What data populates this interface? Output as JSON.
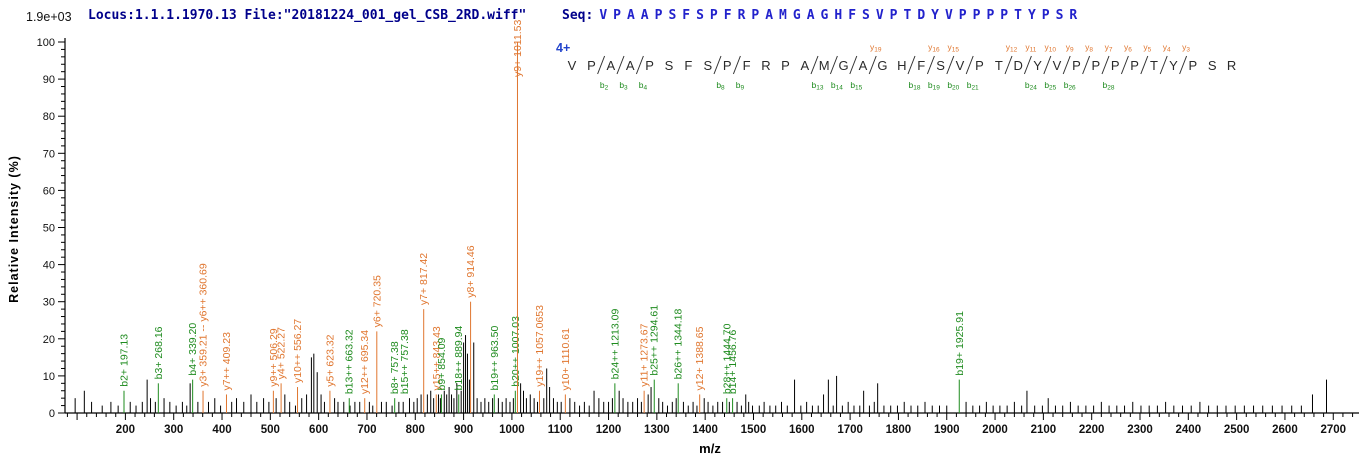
{
  "header": {
    "locus": "Locus:1.1.1.1970.13 File:\"20181224_001_gel_CSB_2RD.wiff\"",
    "seq_label": "Seq:",
    "sequence": "VPAAPSFSPFRPAMGAGHFSVPTDYVPPPPTYPSR"
  },
  "scale_note": "1.9e+03",
  "sequence_map": {
    "charge": "4+",
    "residues": "VPAAPSFSPFRPAMGAGHFSVPTDYVPPPPTYPSR",
    "cuts": [
      {
        "after": 2,
        "b": "b2"
      },
      {
        "after": 3,
        "b": "b3"
      },
      {
        "after": 4,
        "b": "b4"
      },
      {
        "after": 8,
        "b": "b8"
      },
      {
        "after": 9,
        "b": "b9"
      },
      {
        "after": 13,
        "b": "b13"
      },
      {
        "after": 14,
        "b": "b14"
      },
      {
        "after": 15,
        "b": "b15"
      },
      {
        "after": 16,
        "y": "y19"
      },
      {
        "after": 18,
        "b": "b18"
      },
      {
        "after": 19,
        "b": "b19",
        "y": "y16"
      },
      {
        "after": 20,
        "b": "b20",
        "y": "y15"
      },
      {
        "after": 21,
        "b": "b21"
      },
      {
        "after": 23,
        "y": "y12"
      },
      {
        "after": 24,
        "b": "b24",
        "y": "y11"
      },
      {
        "after": 25,
        "b": "b25",
        "y": "y10"
      },
      {
        "after": 26,
        "b": "b26",
        "y": "y9"
      },
      {
        "after": 27,
        "y": "y8"
      },
      {
        "after": 28,
        "b": "b28",
        "y": "y7"
      },
      {
        "after": 29,
        "y": "y6"
      },
      {
        "after": 30,
        "y": "y5"
      },
      {
        "after": 31,
        "y": "y4"
      },
      {
        "after": 32,
        "y": "y3"
      }
    ]
  },
  "chart_data": {
    "type": "bar",
    "title": "",
    "xlabel": "m/z",
    "ylabel": "Relative  Intensity (%)",
    "xlim": [
      75,
      2745
    ],
    "ylim": [
      0,
      100
    ],
    "x_tick_label_start": 200,
    "x_tick_label_end": 2700,
    "x_tick_step": 100,
    "x_minor_step": 20,
    "y_tick_step": 10,
    "y_minor_step": 2,
    "grid": false,
    "colors": {
      "b_ion": "#1e8b1e",
      "y_ion": "#e0762f",
      "peak": "#000000"
    },
    "labeled_peaks": [
      {
        "mz": 197.13,
        "intensity": 6,
        "label": "b2+ 197.13",
        "ion": "b"
      },
      {
        "mz": 268.16,
        "intensity": 8,
        "label": "b3+ 268.16",
        "ion": "b"
      },
      {
        "mz": 339.2,
        "intensity": 9,
        "label": "b4+ 339.20",
        "ion": "b"
      },
      {
        "mz": 360.69,
        "intensity": 6,
        "label": "y3+ 359.21 -- y6++ 360.69",
        "ion": "y"
      },
      {
        "mz": 409.23,
        "intensity": 5,
        "label": "y7++ 409.23",
        "ion": "y"
      },
      {
        "mz": 506.29,
        "intensity": 6,
        "label": "y9++ 506.29",
        "ion": "y"
      },
      {
        "mz": 522.27,
        "intensity": 8,
        "label": "y4+ 522.27",
        "ion": "y"
      },
      {
        "mz": 556.27,
        "intensity": 7,
        "label": "y10++ 556.27",
        "ion": "y"
      },
      {
        "mz": 623.32,
        "intensity": 6,
        "label": "y5+ 623.32",
        "ion": "y"
      },
      {
        "mz": 663.32,
        "intensity": 4,
        "label": "b13++ 663.32",
        "ion": "b"
      },
      {
        "mz": 695.34,
        "intensity": 4,
        "label": "y12++ 695.34",
        "ion": "y"
      },
      {
        "mz": 720.35,
        "intensity": 22,
        "label": "y6+ 720.35",
        "ion": "y"
      },
      {
        "mz": 757.38,
        "intensity": 4,
        "label": "b8+ 757.38",
        "ion": "b"
      },
      {
        "mz": 757.38,
        "intensity": 4,
        "label": "b15++ 757.38",
        "ion": "b",
        "label_dx": 10,
        "no_line": true
      },
      {
        "mz": 817.42,
        "intensity": 28,
        "label": "y7+ 817.42",
        "ion": "y"
      },
      {
        "mz": 843.43,
        "intensity": 5,
        "label": "y15++ 843.43",
        "ion": "y"
      },
      {
        "mz": 854.09,
        "intensity": 5,
        "label": "b9+ 854.09",
        "ion": "b"
      },
      {
        "mz": 889.94,
        "intensity": 5,
        "label": "b18++ 889.94",
        "ion": "b"
      },
      {
        "mz": 914.46,
        "intensity": 30,
        "label": "y8+ 914.46",
        "ion": "y"
      },
      {
        "mz": 963.5,
        "intensity": 5,
        "label": "b19++ 963.50",
        "ion": "b"
      },
      {
        "mz": 1007.03,
        "intensity": 6,
        "label": "b20++ 1007.03",
        "ion": "b"
      },
      {
        "mz": 1011.53,
        "intensity": 100,
        "label": "y9+ 1011.53",
        "ion": "y",
        "label_bottom_y": 77
      },
      {
        "mz": 1057.07,
        "intensity": 6,
        "label": "y19++ 1057.0653",
        "ion": "y"
      },
      {
        "mz": 1110.61,
        "intensity": 5,
        "label": "y10+ 1110.61",
        "ion": "y"
      },
      {
        "mz": 1213.09,
        "intensity": 8,
        "label": "b24++ 1213.09",
        "ion": "b"
      },
      {
        "mz": 1273.67,
        "intensity": 6,
        "label": "y11+ 1273.67",
        "ion": "y"
      },
      {
        "mz": 1294.61,
        "intensity": 9,
        "label": "b25++ 1294.61",
        "ion": "b"
      },
      {
        "mz": 1344.18,
        "intensity": 8,
        "label": "b26++ 1344.18",
        "ion": "b"
      },
      {
        "mz": 1388.65,
        "intensity": 5,
        "label": "y12+ 1388.65",
        "ion": "y"
      },
      {
        "mz": 1444.7,
        "intensity": 4,
        "label": "b28++ 1444.70",
        "ion": "b"
      },
      {
        "mz": 1456.76,
        "intensity": 4,
        "label": "b14+ 1456.76",
        "ion": "b"
      },
      {
        "mz": 1925.91,
        "intensity": 9,
        "label": "b19+ 1925.91",
        "ion": "b"
      }
    ],
    "noise_peaks": [
      [
        96,
        4
      ],
      [
        115,
        6
      ],
      [
        130,
        3
      ],
      [
        152,
        2
      ],
      [
        170,
        3
      ],
      [
        185,
        2
      ],
      [
        210,
        3
      ],
      [
        222,
        2
      ],
      [
        235,
        3
      ],
      [
        245,
        9
      ],
      [
        252,
        4
      ],
      [
        262,
        3
      ],
      [
        280,
        4
      ],
      [
        292,
        3
      ],
      [
        305,
        2
      ],
      [
        318,
        3
      ],
      [
        327,
        2
      ],
      [
        334,
        8
      ],
      [
        350,
        3
      ],
      [
        372,
        3
      ],
      [
        385,
        4
      ],
      [
        397,
        2
      ],
      [
        420,
        3
      ],
      [
        430,
        4
      ],
      [
        445,
        3
      ],
      [
        460,
        5
      ],
      [
        472,
        3
      ],
      [
        486,
        4
      ],
      [
        497,
        3
      ],
      [
        512,
        4
      ],
      [
        530,
        5
      ],
      [
        540,
        3
      ],
      [
        552,
        2
      ],
      [
        565,
        4
      ],
      [
        575,
        5
      ],
      [
        585,
        15
      ],
      [
        590,
        16
      ],
      [
        597,
        11
      ],
      [
        605,
        5
      ],
      [
        612,
        3
      ],
      [
        633,
        4
      ],
      [
        640,
        3
      ],
      [
        652,
        3
      ],
      [
        665,
        2
      ],
      [
        675,
        3
      ],
      [
        685,
        3
      ],
      [
        705,
        3
      ],
      [
        712,
        2
      ],
      [
        730,
        3
      ],
      [
        740,
        3
      ],
      [
        752,
        2
      ],
      [
        766,
        3
      ],
      [
        775,
        3
      ],
      [
        788,
        4
      ],
      [
        797,
        3
      ],
      [
        804,
        4
      ],
      [
        812,
        5
      ],
      [
        825,
        5
      ],
      [
        832,
        6
      ],
      [
        838,
        4
      ],
      [
        848,
        5
      ],
      [
        852,
        4
      ],
      [
        860,
        6
      ],
      [
        865,
        5
      ],
      [
        870,
        7
      ],
      [
        875,
        5
      ],
      [
        880,
        4
      ],
      [
        886,
        8
      ],
      [
        895,
        6
      ],
      [
        900,
        19
      ],
      [
        904,
        21
      ],
      [
        908,
        16
      ],
      [
        912,
        9
      ],
      [
        921,
        19
      ],
      [
        928,
        4
      ],
      [
        936,
        3
      ],
      [
        944,
        4
      ],
      [
        952,
        3
      ],
      [
        960,
        4
      ],
      [
        972,
        4
      ],
      [
        980,
        3
      ],
      [
        988,
        4
      ],
      [
        996,
        3
      ],
      [
        1003,
        4
      ],
      [
        1018,
        8
      ],
      [
        1024,
        6
      ],
      [
        1030,
        4
      ],
      [
        1038,
        5
      ],
      [
        1046,
        4
      ],
      [
        1053,
        3
      ],
      [
        1066,
        4
      ],
      [
        1072,
        12
      ],
      [
        1078,
        7
      ],
      [
        1086,
        4
      ],
      [
        1094,
        3
      ],
      [
        1102,
        3
      ],
      [
        1120,
        4
      ],
      [
        1130,
        3
      ],
      [
        1140,
        2
      ],
      [
        1150,
        3
      ],
      [
        1160,
        2
      ],
      [
        1170,
        6
      ],
      [
        1180,
        4
      ],
      [
        1190,
        3
      ],
      [
        1200,
        3
      ],
      [
        1208,
        4
      ],
      [
        1222,
        6
      ],
      [
        1230,
        4
      ],
      [
        1240,
        3
      ],
      [
        1250,
        3
      ],
      [
        1260,
        4
      ],
      [
        1268,
        3
      ],
      [
        1282,
        5
      ],
      [
        1288,
        7
      ],
      [
        1304,
        4
      ],
      [
        1312,
        3
      ],
      [
        1322,
        2
      ],
      [
        1332,
        3
      ],
      [
        1340,
        4
      ],
      [
        1355,
        3
      ],
      [
        1365,
        2
      ],
      [
        1375,
        3
      ],
      [
        1383,
        2
      ],
      [
        1398,
        4
      ],
      [
        1406,
        3
      ],
      [
        1416,
        2
      ],
      [
        1426,
        3
      ],
      [
        1436,
        3
      ],
      [
        1450,
        3
      ],
      [
        1466,
        3
      ],
      [
        1475,
        2
      ],
      [
        1484,
        5
      ],
      [
        1490,
        3
      ],
      [
        1498,
        2
      ],
      [
        1512,
        2
      ],
      [
        1522,
        3
      ],
      [
        1534,
        2
      ],
      [
        1546,
        2
      ],
      [
        1558,
        3
      ],
      [
        1570,
        2
      ],
      [
        1585,
        9
      ],
      [
        1598,
        2
      ],
      [
        1610,
        3
      ],
      [
        1622,
        2
      ],
      [
        1634,
        2
      ],
      [
        1645,
        5
      ],
      [
        1655,
        9
      ],
      [
        1665,
        2
      ],
      [
        1672,
        10
      ],
      [
        1684,
        2
      ],
      [
        1696,
        3
      ],
      [
        1708,
        2
      ],
      [
        1720,
        2
      ],
      [
        1728,
        6
      ],
      [
        1740,
        2
      ],
      [
        1750,
        3
      ],
      [
        1757,
        8
      ],
      [
        1770,
        2
      ],
      [
        1784,
        2
      ],
      [
        1798,
        2
      ],
      [
        1812,
        3
      ],
      [
        1826,
        2
      ],
      [
        1840,
        2
      ],
      [
        1855,
        3
      ],
      [
        1870,
        2
      ],
      [
        1885,
        2
      ],
      [
        1900,
        2
      ],
      [
        1940,
        3
      ],
      [
        1954,
        2
      ],
      [
        1968,
        2
      ],
      [
        1982,
        3
      ],
      [
        1996,
        2
      ],
      [
        2010,
        2
      ],
      [
        2025,
        2
      ],
      [
        2040,
        3
      ],
      [
        2055,
        2
      ],
      [
        2066,
        6
      ],
      [
        2082,
        2
      ],
      [
        2098,
        2
      ],
      [
        2110,
        4
      ],
      [
        2125,
        2
      ],
      [
        2140,
        2
      ],
      [
        2156,
        3
      ],
      [
        2172,
        2
      ],
      [
        2188,
        2
      ],
      [
        2204,
        2
      ],
      [
        2220,
        3
      ],
      [
        2236,
        2
      ],
      [
        2252,
        2
      ],
      [
        2268,
        2
      ],
      [
        2285,
        3
      ],
      [
        2302,
        2
      ],
      [
        2319,
        2
      ],
      [
        2336,
        2
      ],
      [
        2353,
        3
      ],
      [
        2370,
        2
      ],
      [
        2388,
        2
      ],
      [
        2406,
        2
      ],
      [
        2424,
        3
      ],
      [
        2442,
        2
      ],
      [
        2460,
        2
      ],
      [
        2478,
        2
      ],
      [
        2497,
        2
      ],
      [
        2516,
        2
      ],
      [
        2535,
        2
      ],
      [
        2554,
        2
      ],
      [
        2574,
        2
      ],
      [
        2594,
        2
      ],
      [
        2614,
        2
      ],
      [
        2634,
        2
      ],
      [
        2657,
        5
      ],
      [
        2686,
        9
      ]
    ]
  }
}
